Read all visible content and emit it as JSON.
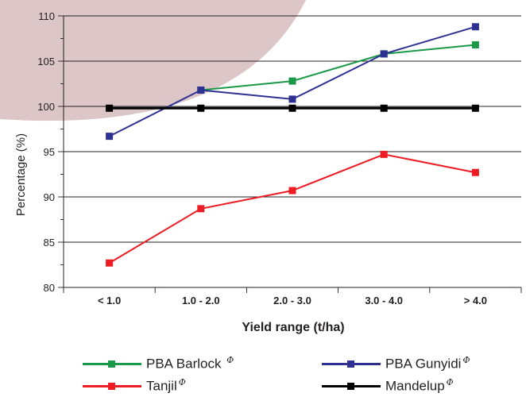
{
  "chart_data": {
    "type": "line",
    "categories": [
      "< 1.0",
      "1.0 - 2.0",
      "2.0 - 3.0",
      "3.0 - 4.0",
      "> 4.0"
    ],
    "xlabel": "Yield range (t/ha)",
    "ylabel": "Percentage (%)",
    "ylim": [
      80,
      110
    ],
    "yticks": [
      80,
      85,
      90,
      95,
      100,
      105,
      110
    ],
    "grid": "horizontal",
    "legend_position": "bottom",
    "series": [
      {
        "name": "PBA Barlock",
        "color": "#1a9a48",
        "values": [
          null,
          101.8,
          102.8,
          105.8,
          106.8
        ]
      },
      {
        "name": "PBA Gunyidi",
        "color": "#2e3192",
        "values": [
          96.7,
          101.8,
          100.8,
          105.8,
          108.8
        ]
      },
      {
        "name": "Tanjil",
        "color": "#ed1c24",
        "values": [
          82.7,
          88.7,
          90.7,
          94.7,
          92.7
        ]
      },
      {
        "name": "Mandelup",
        "color": "#000000",
        "values": [
          99.8,
          99.8,
          99.8,
          99.8,
          99.8
        ]
      }
    ],
    "pbr_symbol": "Φ",
    "background_shape_color": "#dcc6c7"
  }
}
